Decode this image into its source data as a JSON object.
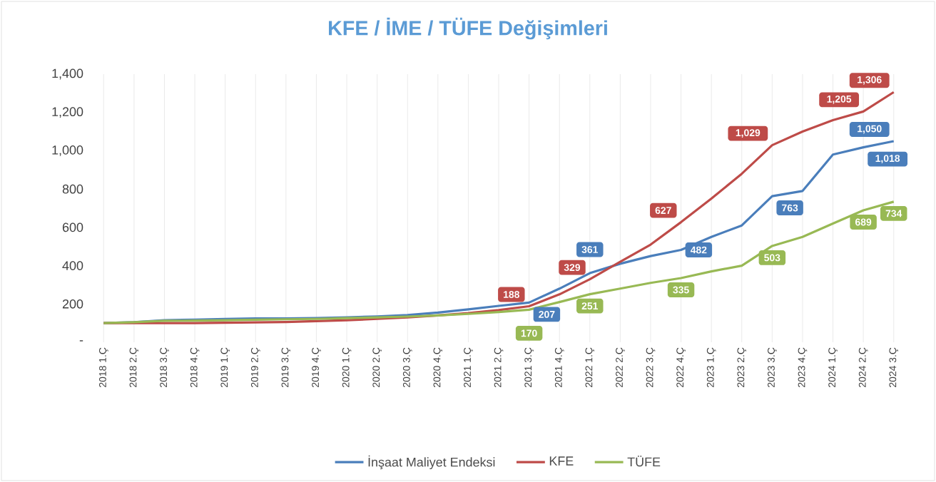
{
  "chart_data": {
    "type": "line",
    "title": "KFE / İME / TÜFE Değişimleri",
    "categories": [
      "2018 1.Ç",
      "2018 2.Ç",
      "2018 3.Ç",
      "2018 4.Ç",
      "2019 1.Ç",
      "2019 2.Ç",
      "2019 3.Ç",
      "2019 4.Ç",
      "2020 1.Ç",
      "2020 2.Ç",
      "2020 3.Ç",
      "2020 4.Ç",
      "2021 1.Ç",
      "2021 2.Ç",
      "2021 3.Ç",
      "2021 4.Ç",
      "2022 1.Ç",
      "2022 2.Ç",
      "2022 3.Ç",
      "2022 4.Ç",
      "2023 1.Ç",
      "2023 2.Ç",
      "2023 3.Ç",
      "2023 4.Ç",
      "2024 1.Ç",
      "2024 2.Ç",
      "2024 3.Ç"
    ],
    "series": [
      {
        "name": "İnşaat Maliyet Endeksi",
        "color": "#4a7ebb",
        "values": [
          100,
          105,
          115,
          118,
          122,
          124,
          124,
          126,
          130,
          135,
          142,
          155,
          172,
          190,
          207,
          280,
          361,
          410,
          450,
          482,
          550,
          610,
          763,
          790,
          980,
          1018,
          1050
        ],
        "value_labels": [
          null,
          null,
          null,
          null,
          null,
          null,
          null,
          null,
          null,
          null,
          null,
          null,
          null,
          null,
          "207",
          null,
          "361",
          null,
          null,
          "482",
          null,
          null,
          "763",
          null,
          null,
          "1,018",
          "1,050"
        ]
      },
      {
        "name": "KFE",
        "color": "#be4b48",
        "values": [
          100,
          100,
          100,
          100,
          102,
          104,
          106,
          110,
          115,
          122,
          130,
          140,
          152,
          168,
          188,
          250,
          329,
          420,
          510,
          627,
          750,
          880,
          1029,
          1100,
          1160,
          1205,
          1306
        ],
        "value_labels": [
          null,
          null,
          null,
          null,
          null,
          null,
          null,
          null,
          null,
          null,
          null,
          null,
          null,
          null,
          "188",
          null,
          "329",
          null,
          null,
          "627",
          null,
          null,
          "1,029",
          null,
          null,
          "1,205",
          "1,306"
        ]
      },
      {
        "name": "TÜFE",
        "color": "#98b954",
        "values": [
          100,
          105,
          112,
          113,
          115,
          118,
          120,
          122,
          126,
          130,
          134,
          140,
          148,
          158,
          170,
          210,
          251,
          280,
          310,
          335,
          370,
          400,
          503,
          550,
          620,
          689,
          734
        ],
        "value_labels": [
          null,
          null,
          null,
          null,
          null,
          null,
          null,
          null,
          null,
          null,
          null,
          null,
          null,
          null,
          "170",
          null,
          "251",
          null,
          null,
          "335",
          null,
          null,
          "503",
          null,
          null,
          "689",
          "734"
        ]
      }
    ],
    "ylim": [
      0,
      1400
    ],
    "yticks": [
      {
        "value": 0,
        "label": "-"
      },
      {
        "value": 200,
        "label": "200"
      },
      {
        "value": 400,
        "label": "400"
      },
      {
        "value": 600,
        "label": "600"
      },
      {
        "value": 800,
        "label": "800"
      },
      {
        "value": 1000,
        "label": "1,000"
      },
      {
        "value": 1200,
        "label": "1,200"
      },
      {
        "value": 1400,
        "label": "1,400"
      }
    ],
    "grid": "x",
    "legend": "bottom",
    "marker": "none",
    "line_style": "solid"
  }
}
